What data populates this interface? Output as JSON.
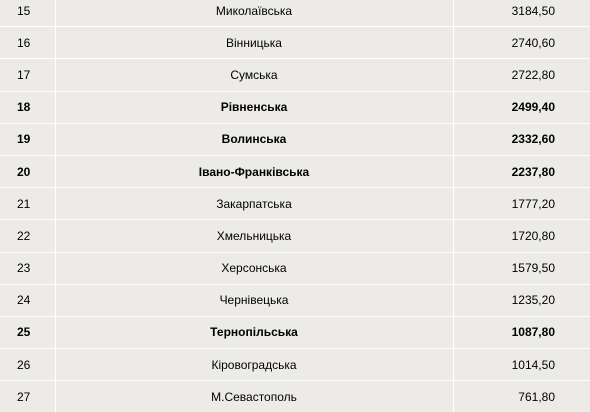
{
  "rows": [
    {
      "rank": "15",
      "region": "Миколаївська",
      "value": "3184,50",
      "bold": false
    },
    {
      "rank": "16",
      "region": "Вінницька",
      "value": "2740,60",
      "bold": false
    },
    {
      "rank": "17",
      "region": "Сумська",
      "value": "2722,80",
      "bold": false
    },
    {
      "rank": "18",
      "region": "Рівненська",
      "value": "2499,40",
      "bold": true
    },
    {
      "rank": "19",
      "region": "Волинська",
      "value": "2332,60",
      "bold": true
    },
    {
      "rank": "20",
      "region": "Івано-Франківська",
      "value": "2237,80",
      "bold": true
    },
    {
      "rank": "21",
      "region": "Закарпатська",
      "value": "1777,20",
      "bold": false
    },
    {
      "rank": "22",
      "region": "Хмельницька",
      "value": "1720,80",
      "bold": false
    },
    {
      "rank": "23",
      "region": "Херсонська",
      "value": "1579,50",
      "bold": false
    },
    {
      "rank": "24",
      "region": "Чернівецька",
      "value": "1235,20",
      "bold": false
    },
    {
      "rank": "25",
      "region": "Тернопільська",
      "value": "1087,80",
      "bold": true
    },
    {
      "rank": "26",
      "region": "Кіровоградська",
      "value": "1014,50",
      "bold": false
    },
    {
      "rank": "27",
      "region": "М.Севастополь",
      "value": "761,80",
      "bold": false
    }
  ]
}
